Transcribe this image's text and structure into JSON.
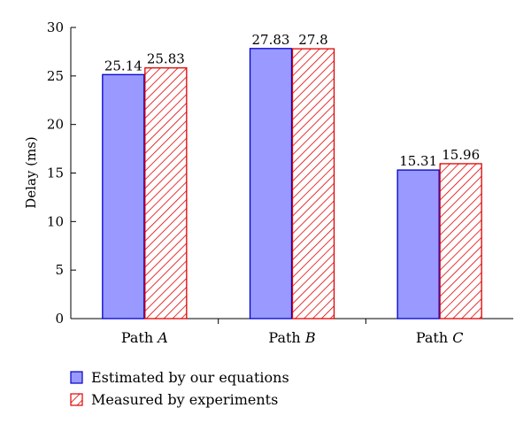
{
  "chart_data": {
    "type": "bar",
    "categories": [
      {
        "prefix": "Path ",
        "italic": "A"
      },
      {
        "prefix": "Path ",
        "italic": "B"
      },
      {
        "prefix": "Path ",
        "italic": "C"
      }
    ],
    "series": [
      {
        "name": "Estimated by our equations",
        "values": [
          25.14,
          27.83,
          15.31
        ],
        "value_labels": [
          "25.14",
          "27.83",
          "15.31"
        ],
        "fill": "#9999ff",
        "stroke": "#0000cc",
        "pattern": "solid"
      },
      {
        "name": "Measured by experiments",
        "values": [
          25.83,
          27.8,
          15.96
        ],
        "value_labels": [
          "25.83",
          "27.8",
          "15.96"
        ],
        "fill": "#ffffff",
        "stroke": "#e00000",
        "pattern": "hatch"
      }
    ],
    "ylabel": "Delay (ms)",
    "xlabel": "",
    "title": "",
    "ylim": [
      0,
      30
    ],
    "yticks": [
      0,
      5,
      10,
      15,
      20,
      25,
      30
    ],
    "grid": false,
    "legend_position": "bottom-left"
  }
}
